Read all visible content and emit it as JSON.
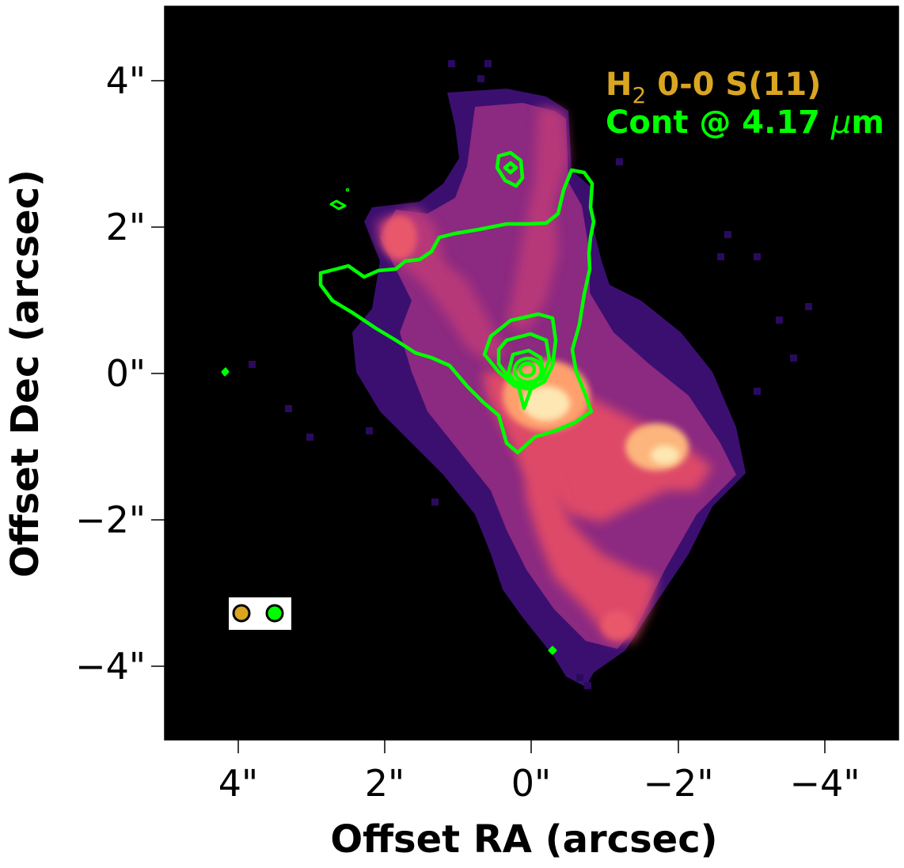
{
  "chart_data": {
    "type": "heatmap",
    "xlabel": "Offset RA (arcsec)",
    "ylabel": "Offset Dec (arcsec)",
    "xlim": [
      5,
      -5
    ],
    "ylim": [
      -5,
      5
    ],
    "x_ticks": [
      4,
      2,
      0,
      -2,
      -4
    ],
    "y_ticks": [
      4,
      2,
      0,
      -2,
      -4
    ],
    "x_tick_labels": [
      "4\"",
      "2\"",
      "0\"",
      "−2\"",
      "−4\""
    ],
    "y_tick_labels": [
      "4\"",
      "2\"",
      "0\"",
      "−2\"",
      "−4\""
    ],
    "colormap": "magma",
    "background_color": "#000000",
    "series": [
      {
        "name": "H2 0-0 S(11)",
        "label_main": "H",
        "label_sub": "2",
        "label_rest": " 0-0 S(11)",
        "kind": "heatmap",
        "color": "#DAA520"
      },
      {
        "name": "Cont @ 4.17 μm",
        "label_main": "Cont @ 4.17 ",
        "label_mu": "μ",
        "label_unit": "m",
        "kind": "contour",
        "color": "#00FF00"
      }
    ],
    "beam_markers": [
      {
        "color": "#DAA520"
      },
      {
        "color": "#00FF00"
      }
    ]
  }
}
